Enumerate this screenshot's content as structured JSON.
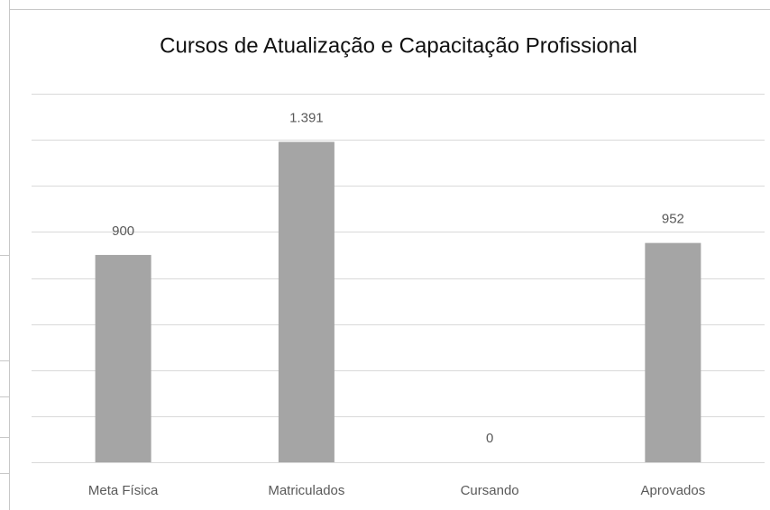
{
  "chart_data": {
    "type": "bar",
    "title": "Cursos de Atualização e Capacitação Profissional",
    "categories": [
      "Meta Física",
      "Matriculados",
      "Cursando",
      "Aprovados"
    ],
    "values": [
      900,
      1391,
      0,
      952
    ],
    "value_labels": [
      "900",
      "1.391",
      "0",
      "952"
    ],
    "color": "#a5a5a5",
    "ylim": [
      0,
      1600
    ],
    "yticks": [
      0,
      200,
      400,
      600,
      800,
      1000,
      1200,
      1400,
      1600
    ],
    "grid": true
  }
}
